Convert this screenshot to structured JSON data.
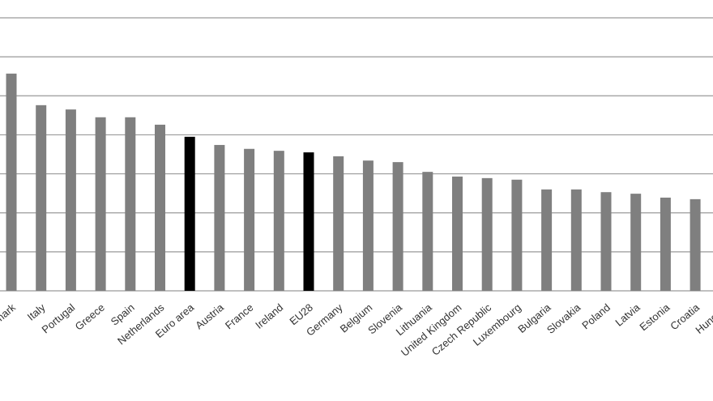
{
  "chart_data": {
    "type": "bar",
    "categories": [
      "Denmark",
      "Italy",
      "Portugal",
      "Greece",
      "Spain",
      "Netherlands",
      "Euro area",
      "Austria",
      "France",
      "Ireland",
      "EU28",
      "Germany",
      "Belgium",
      "Slovenia",
      "Lithuania",
      "United Kingdom",
      "Czech Republic",
      "Luxembourg",
      "Bulgaria",
      "Slovakia",
      "Poland",
      "Latvia",
      "Estonia",
      "Croatia",
      "Hungary"
    ],
    "values": [
      5.57,
      4.76,
      4.65,
      4.45,
      4.45,
      4.26,
      3.95,
      3.74,
      3.64,
      3.59,
      3.55,
      3.45,
      3.34,
      3.3,
      3.05,
      2.93,
      2.89,
      2.85,
      2.6,
      2.6,
      2.53,
      2.49,
      2.39,
      2.35,
      null
    ],
    "colors": [
      "#7f7f7f",
      "#7f7f7f",
      "#7f7f7f",
      "#7f7f7f",
      "#7f7f7f",
      "#7f7f7f",
      "#000000",
      "#7f7f7f",
      "#7f7f7f",
      "#7f7f7f",
      "#000000",
      "#7f7f7f",
      "#7f7f7f",
      "#7f7f7f",
      "#7f7f7f",
      "#7f7f7f",
      "#7f7f7f",
      "#7f7f7f",
      "#7f7f7f",
      "#7f7f7f",
      "#7f7f7f",
      "#7f7f7f",
      "#7f7f7f",
      "#7f7f7f",
      "#7f7f7f"
    ],
    "ylim": [
      0,
      7
    ],
    "yticks": [
      0,
      1,
      2,
      3,
      4,
      5,
      6,
      7
    ],
    "grid": true
  }
}
